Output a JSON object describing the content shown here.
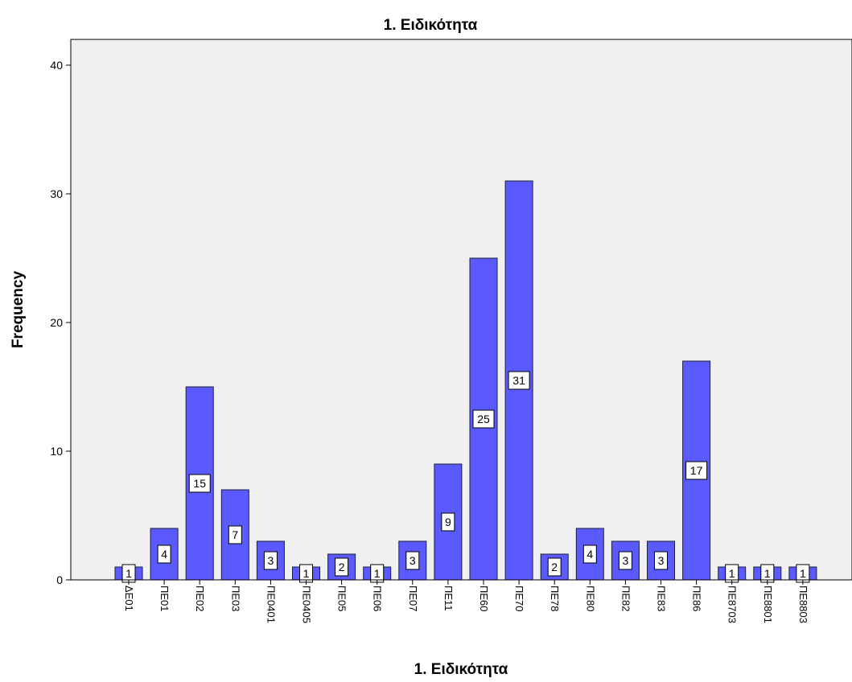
{
  "chart_data": {
    "type": "bar",
    "title": "1. Ειδικότητα",
    "xlabel": "1. Ειδικότητα",
    "ylabel": "Frequency",
    "ylim": [
      0,
      42
    ],
    "yticks": [
      0,
      10,
      20,
      30,
      40
    ],
    "categories": [
      "ΔΕ01",
      "ΠΕ01",
      "ΠΕ02",
      "ΠΕ03",
      "ΠΕ0401",
      "ΠΕ0405",
      "ΠΕ05",
      "ΠΕ06",
      "ΠΕ07",
      "ΠΕ11",
      "ΠΕ60",
      "ΠΕ70",
      "ΠΕ78",
      "ΠΕ80",
      "ΠΕ82",
      "ΠΕ83",
      "ΠΕ86",
      "ΠΕ8703",
      "ΠΕ8801",
      "ΠΕ8803"
    ],
    "values": [
      1,
      4,
      15,
      7,
      3,
      1,
      2,
      1,
      3,
      9,
      25,
      31,
      2,
      4,
      3,
      3,
      17,
      1,
      1,
      1
    ],
    "grid": false,
    "colors": {
      "bar_fill": "#5a5aff",
      "bar_stroke": "#1e1e3c",
      "plot_bg": "#f0f0f0",
      "axis": "#000000"
    }
  }
}
